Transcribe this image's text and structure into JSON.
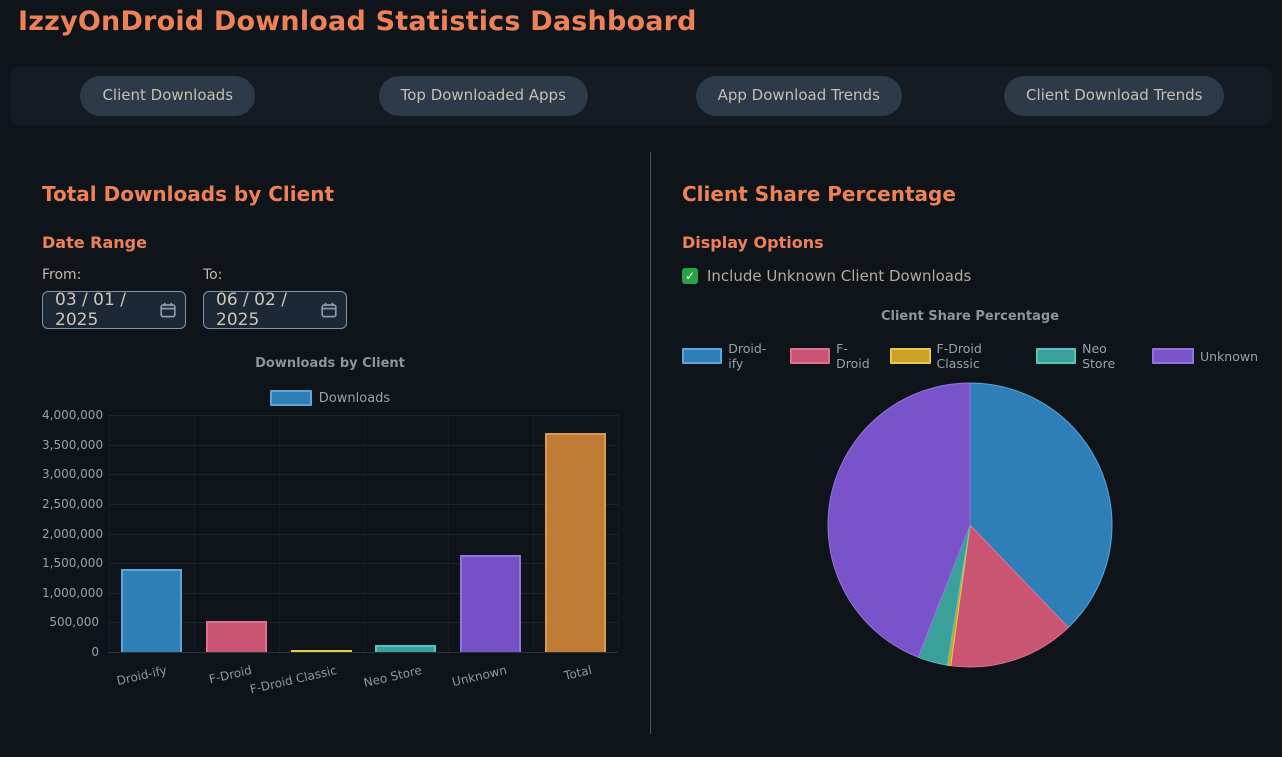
{
  "header": {
    "title": "IzzyOnDroid Download Statistics Dashboard"
  },
  "tabs": [
    {
      "label": "Client Downloads"
    },
    {
      "label": "Top Downloaded Apps"
    },
    {
      "label": "App Download Trends"
    },
    {
      "label": "Client Download Trends"
    }
  ],
  "left_panel": {
    "title": "Total Downloads by Client",
    "date_range": {
      "heading": "Date Range",
      "from_label": "From:",
      "to_label": "To:",
      "from_value": "03 / 01 / 2025",
      "to_value": "06 / 02 / 2025"
    }
  },
  "right_panel": {
    "title": "Client Share Percentage",
    "options_heading": "Display Options",
    "checkbox_label": "Include Unknown Client Downloads",
    "checkbox_checked": true,
    "checkbox_glyph": "✓"
  },
  "colors": {
    "background": "#0f141a",
    "accent_heading": "#ef8157",
    "tab_pill": "#2c3a49",
    "tab_text": "#c8bfae",
    "divider": "#3d5b6d",
    "checkbox_green": "#27a346",
    "input_border": "#8094a9",
    "input_bg": "#1c2836"
  },
  "chart_data": [
    {
      "type": "bar",
      "title": "Downloads by Client",
      "legend_label": "Downloads",
      "legend_color": "#2e7eb8",
      "legend_border": "#5aa7d8",
      "categories": [
        "Droid-ify",
        "F-Droid",
        "F-Droid Classic",
        "Neo Store",
        "Unknown",
        "Total"
      ],
      "values": [
        1400000,
        530000,
        15000,
        125000,
        1630000,
        3700000
      ],
      "bar_colors": [
        "#2e7eb8",
        "#c95573",
        "#c9a227",
        "#39a09a",
        "#7551c5",
        "#c07c35"
      ],
      "bar_border_colors": [
        "#5aa7d8",
        "#e0708d",
        "#e6c84a",
        "#55c6bd",
        "#9274dc",
        "#da9a50"
      ],
      "ylabel": "",
      "xlabel": "",
      "ylim": [
        0,
        4000000
      ],
      "ytick_step": 500000,
      "grid": true
    },
    {
      "type": "pie",
      "title": "Client Share Percentage",
      "labels": [
        "Droid-ify",
        "F-Droid",
        "F-Droid Classic",
        "Neo Store",
        "Unknown"
      ],
      "values": [
        1400000,
        530000,
        15000,
        125000,
        1630000
      ],
      "colors": [
        "#2e7eb8",
        "#c95573",
        "#c9a227",
        "#39a09a",
        "#7a53cb"
      ],
      "border_colors": [
        "#5aa7d8",
        "#e0708d",
        "#e6c84a",
        "#55c6bd",
        "#9274dc"
      ],
      "legend_position": "top",
      "start_angle_deg": 0,
      "direction": "clockwise"
    }
  ]
}
